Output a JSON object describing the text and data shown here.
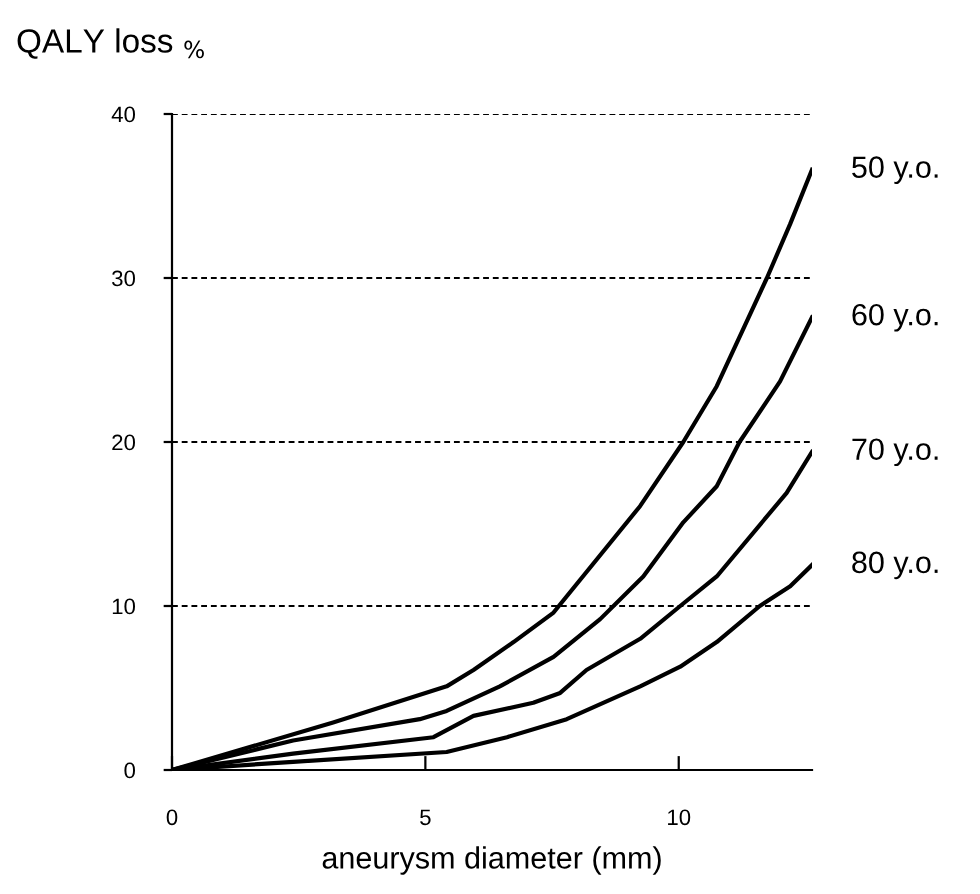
{
  "chart_data": {
    "type": "line",
    "ylabel": "QALY loss $_{%}$",
    "xlabel": "aneurysm diameter (mm)",
    "xlim": [
      0,
      12.63
    ],
    "xticks": [
      0,
      5,
      10
    ],
    "ylim": [
      0,
      40
    ],
    "yticks": [
      0,
      10,
      20,
      30,
      40
    ],
    "grid": "y",
    "line_style": "solid",
    "series": [
      {
        "name": "50 y.o.",
        "color": "#000000",
        "x": [
          0,
          3.18,
          5.42,
          5.95,
          6.74,
          7.53,
          9.24,
          10.09,
          10.75,
          11.74,
          12.2,
          12.63
        ],
        "values": [
          0,
          2.9,
          5.1,
          6.1,
          7.8,
          9.6,
          16.1,
          20,
          23.4,
          30,
          33.3,
          36.6
        ]
      },
      {
        "name": "60 y.o.",
        "color": "#000000",
        "x": [
          0,
          2.39,
          4.89,
          5.42,
          6.47,
          7.53,
          8.45,
          9.3,
          10.09,
          10.75,
          11.2,
          12.0,
          12.63
        ],
        "values": [
          0,
          1.8,
          3.1,
          3.6,
          5.1,
          6.9,
          9.2,
          11.8,
          15.1,
          17.3,
          20,
          23.7,
          27.6
        ]
      },
      {
        "name": "70 y.o.",
        "color": "#000000",
        "x": [
          0,
          2.39,
          5.16,
          5.95,
          7.13,
          7.66,
          8.18,
          9.24,
          10.03,
          10.75,
          12.13,
          12.63
        ],
        "values": [
          0,
          1.0,
          2.0,
          3.3,
          4.1,
          4.7,
          6.1,
          8.0,
          10,
          11.8,
          16.9,
          19.4
        ]
      },
      {
        "name": "80 y.o.",
        "color": "#000000",
        "x": [
          0,
          2.39,
          5.42,
          6.61,
          7.79,
          9.24,
          10.03,
          10.75,
          11.6,
          12.2,
          12.63
        ],
        "values": [
          0,
          0.5,
          1.1,
          2.0,
          3.1,
          5.1,
          6.3,
          7.8,
          10,
          11.2,
          12.5
        ]
      }
    ]
  }
}
